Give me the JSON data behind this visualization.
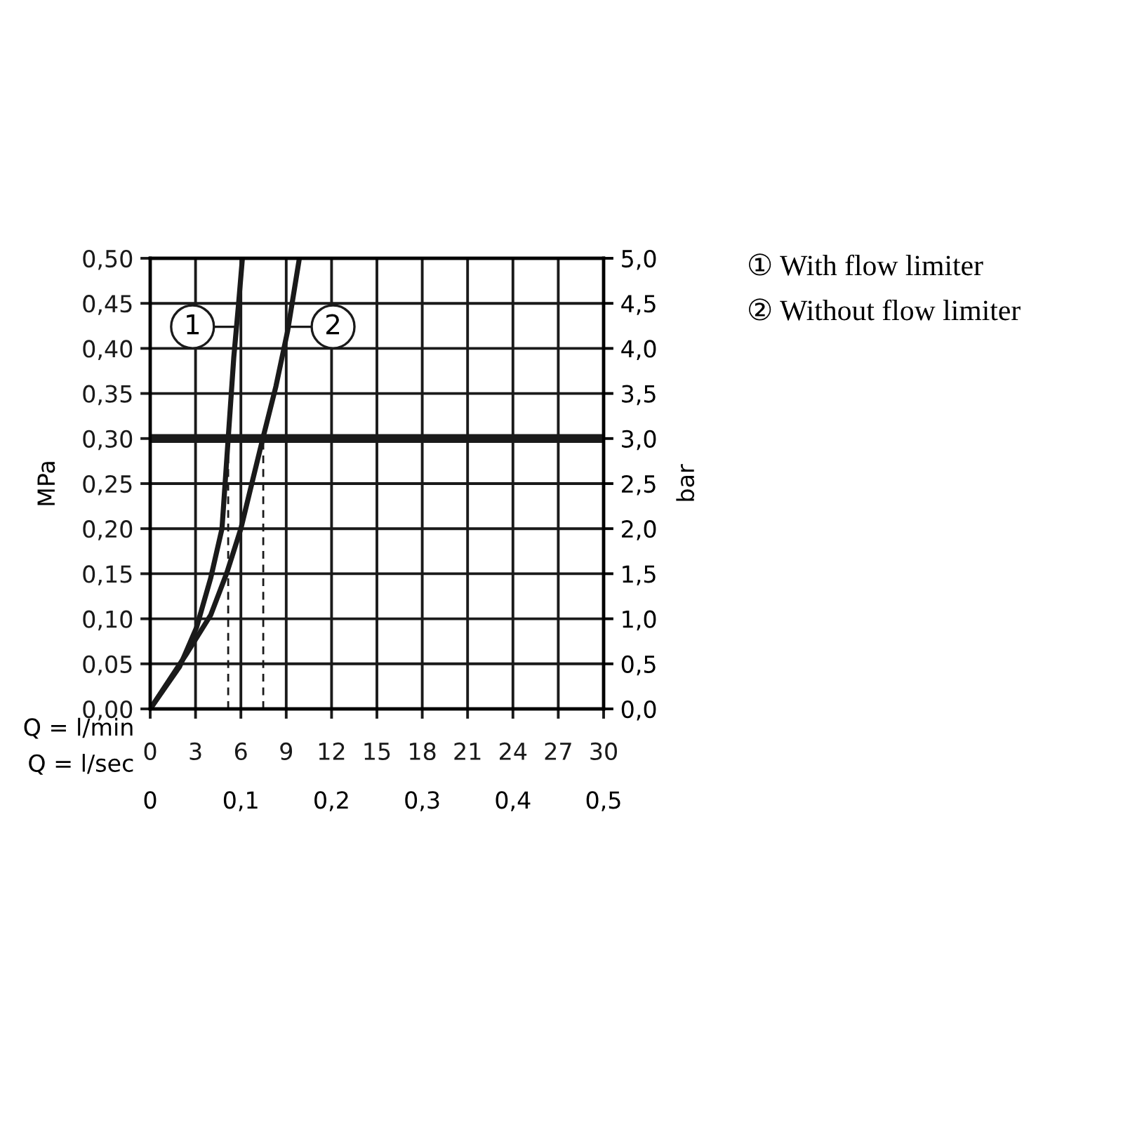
{
  "chart_data": {
    "type": "line",
    "xlabel": "Q = l/min",
    "ylabel": "MPa",
    "y2label": "bar",
    "x2label": "Q = l/sec",
    "xlim": [
      0,
      30
    ],
    "xticks": [
      0,
      3,
      6,
      9,
      12,
      15,
      18,
      21,
      24,
      27,
      30
    ],
    "ylim": [
      0,
      0.5
    ],
    "yticks": [
      {
        "value": 0,
        "label": "0,00"
      },
      {
        "value": 0.05,
        "label": "0,05"
      },
      {
        "value": 0.1,
        "label": "0,10"
      },
      {
        "value": 0.15,
        "label": "0,15"
      },
      {
        "value": 0.2,
        "label": "0,20"
      },
      {
        "value": 0.25,
        "label": "0,25"
      },
      {
        "value": 0.3,
        "label": "0,30"
      },
      {
        "value": 0.35,
        "label": "0,35"
      },
      {
        "value": 0.4,
        "label": "0,40"
      },
      {
        "value": 0.45,
        "label": "0,45"
      },
      {
        "value": 0.5,
        "label": "0,50"
      }
    ],
    "y2lim": [
      0,
      5
    ],
    "y2ticks": [
      {
        "value": 0,
        "label": "0,0"
      },
      {
        "value": 0.5,
        "label": "0,5"
      },
      {
        "value": 1,
        "label": "1,0"
      },
      {
        "value": 1.5,
        "label": "1,5"
      },
      {
        "value": 2,
        "label": "2,0"
      },
      {
        "value": 2.5,
        "label": "2,5"
      },
      {
        "value": 3,
        "label": "3,0"
      },
      {
        "value": 3.5,
        "label": "3,5"
      },
      {
        "value": 4,
        "label": "4,0"
      },
      {
        "value": 4.5,
        "label": "4,5"
      },
      {
        "value": 5,
        "label": "5,0"
      }
    ],
    "x2lim": [
      0,
      0.5
    ],
    "x2ticks": [
      0,
      {
        "value": 0.1,
        "label": "0,1"
      },
      {
        "value": 0.2,
        "label": "0,2"
      },
      {
        "value": 0.3,
        "label": "0,3"
      },
      {
        "value": 0.4,
        "label": "0,4"
      },
      {
        "value": 0.5,
        "label": "0,5"
      }
    ],
    "grid": true,
    "marker": "none",
    "line_style": "solid",
    "series": [
      {
        "color": "#1a1a1a",
        "x": [
          0,
          1.95,
          3.06,
          4.0,
          4.75,
          5.16,
          5.53,
          5.85,
          6.1
        ],
        "values": [
          0,
          0.047,
          0.09,
          0.145,
          0.2,
          0.3,
          0.39,
          0.45,
          0.5
        ]
      },
      {
        "color": "#1a1a1a",
        "x": [
          0,
          2.44,
          4.0,
          5.07,
          6.0,
          6.78,
          7.45,
          8.32,
          9.1,
          9.87
        ],
        "values": [
          0,
          0.062,
          0.104,
          0.151,
          0.2,
          0.254,
          0.3,
          0.358,
          0.42,
          0.5
        ]
      }
    ],
    "ref_lines": [
      {
        "axis": "y",
        "value": 0.3,
        "color": "#1a1a1a",
        "line_style": "solid"
      },
      {
        "axis": "x",
        "value": 5.16,
        "color": "#1a1a1a",
        "line_style": "dashed"
      },
      {
        "axis": "x",
        "value": 7.48,
        "color": "#1a1a1a",
        "line_style": "dashed"
      }
    ],
    "annotations": [
      {
        "text": "1",
        "x": 5.7,
        "y": 0.424
      },
      {
        "text": "2",
        "x": 9.1,
        "y": 0.424
      },
      "① With flow limiter",
      "② Without flow limiter"
    ]
  }
}
